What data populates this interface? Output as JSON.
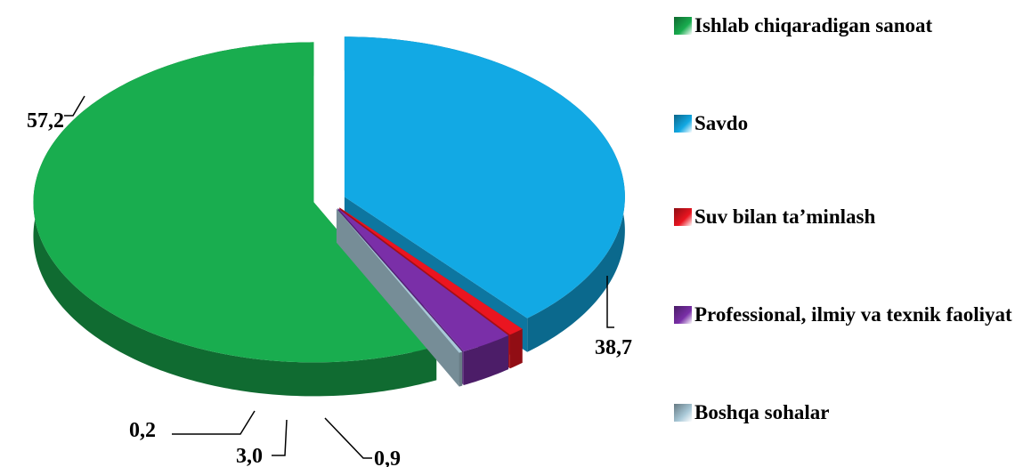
{
  "chart_data": {
    "type": "pie",
    "categories": [
      "Ishlab chiqaradigan sanoat",
      "Savdo",
      "Suv bilan ta’minlash",
      "Professional, ilmiy va texnik faoliyat",
      "Boshqa sohalar"
    ],
    "values": [
      57.2,
      38.7,
      0.9,
      3.0,
      0.2
    ],
    "value_labels": [
      "57,2",
      "38,7",
      "0,9",
      "3,0",
      "0,2"
    ],
    "colors": [
      "#19ad4f",
      "#12a9e4",
      "#ea1520",
      "#7a2fa8",
      "#a9c9d8"
    ],
    "legend": "right"
  }
}
